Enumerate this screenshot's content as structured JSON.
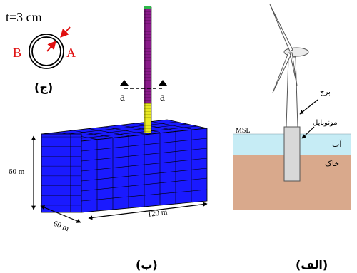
{
  "section_c": {
    "thickness_label": "t=3 cm",
    "point_b": "B",
    "point_a": "A",
    "caption": "(ج)"
  },
  "section_b": {
    "cut_left": "a",
    "cut_right": "a",
    "depth_label": "60 m",
    "width_label": "60 m",
    "length_label": "120 m",
    "caption": "(ب)"
  },
  "section_alef": {
    "tower_label": "برج",
    "monopile_label": "مونوپایل",
    "msl_label": "MSL",
    "water_label": "آب",
    "soil_label": "خاک",
    "caption": "(الف)"
  },
  "colors": {
    "mesh_blue": "#1a1aff",
    "pile_magenta": "#8a1a8a",
    "pile_yellow": "#e8e820",
    "water": "#c6ecf5",
    "soil": "#d9a98c",
    "red": "#e01010"
  }
}
